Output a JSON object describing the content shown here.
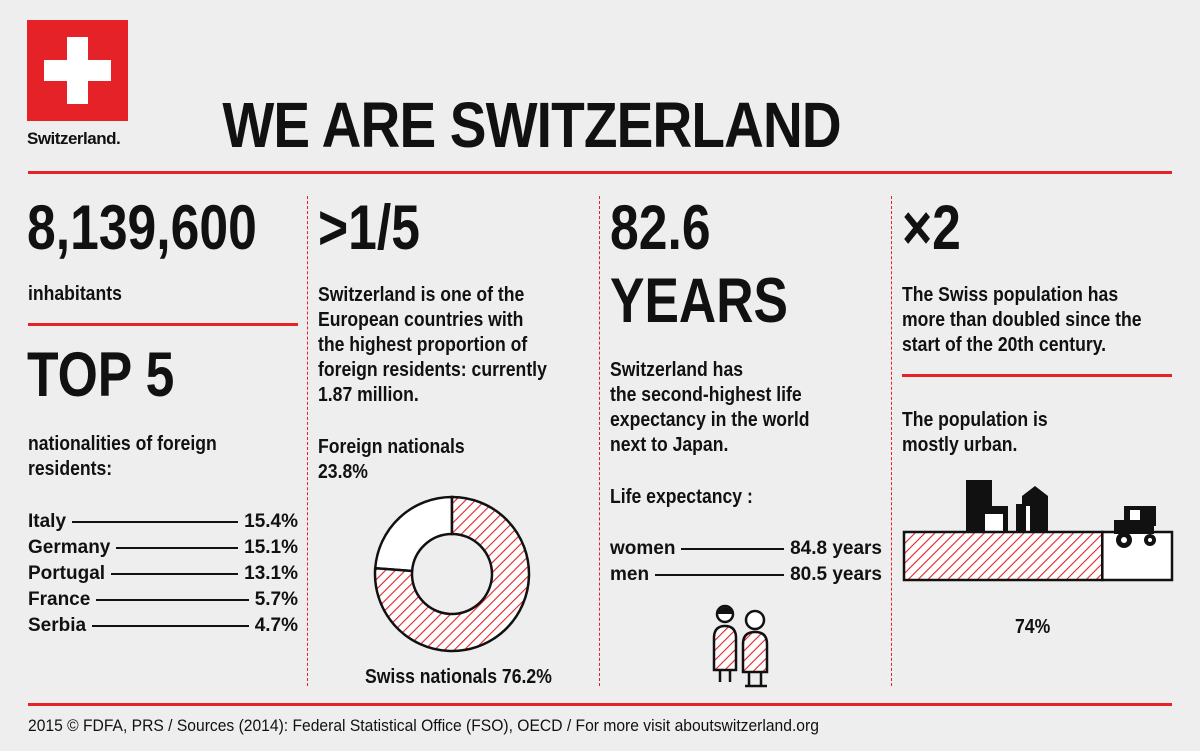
{
  "brand": {
    "logo_text": "Switzerland."
  },
  "header": {
    "title": "WE ARE SWITZERLAND"
  },
  "col1": {
    "big_number": "8,139,600",
    "caption": "inhabitants",
    "top_heading": "TOP 5",
    "top_caption_line1": "nationalities of foreign",
    "top_caption_line2": "residents:",
    "nationalities": [
      {
        "name": "Italy",
        "value": "15.4%"
      },
      {
        "name": "Germany",
        "value": "15.1%"
      },
      {
        "name": "Portugal",
        "value": "13.1%"
      },
      {
        "name": "France",
        "value": "5.7%"
      },
      {
        "name": "Serbia",
        "value": "4.7%"
      }
    ]
  },
  "col2": {
    "big_number": ">1/5",
    "text_lines": [
      "Switzerland is one of the",
      "European countries with",
      "the highest proportion of",
      "foreign residents: currently",
      "1.87 million."
    ],
    "foreign_label": "Foreign nationals",
    "foreign_value": "23.8%",
    "swiss_label": "Swiss nationals 76.2%",
    "donut": {
      "foreign_fraction": 0.238,
      "swiss_fraction": 0.762
    }
  },
  "col3": {
    "big_line1": "82.6",
    "big_line2": "YEARS",
    "text_lines": [
      "Switzerland has",
      "the second-highest life",
      "expectancy in the world",
      "next to Japan."
    ],
    "life_label": "Life expectancy :",
    "life": [
      {
        "name": "women",
        "value": "84.8 years"
      },
      {
        "name": "men",
        "value": "80.5 years"
      }
    ]
  },
  "col4": {
    "big_number": "×2",
    "text_lines": [
      "The Swiss population has",
      "more than doubled since the",
      "start of the 20th century."
    ],
    "urban_lines": [
      "The population is",
      "mostly urban."
    ],
    "urban_percent": "74%",
    "urban_fraction": 0.74
  },
  "footer": {
    "text": "2015 © FDFA, PRS / Sources (2014): Federal Statistical Office (FSO), OECD / For more visit aboutswitzerland.org"
  },
  "colors": {
    "accent": "#e42228",
    "background": "#eeeeee",
    "text": "#111111"
  }
}
